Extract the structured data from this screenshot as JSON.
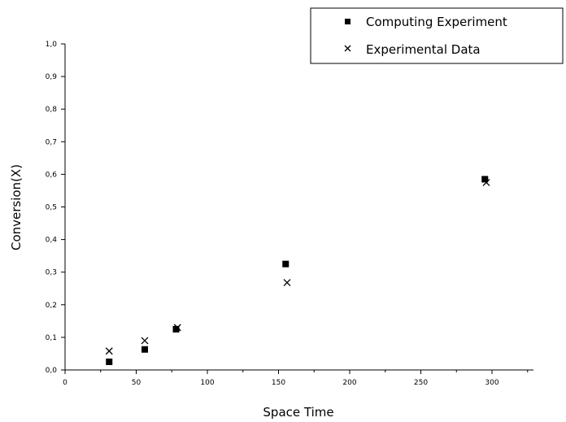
{
  "chart_data": {
    "type": "scatter",
    "xlabel": "Space Time",
    "ylabel": "Conversion(X)",
    "xlim": [
      0,
      325
    ],
    "ylim": [
      0,
      1.0
    ],
    "x_ticks": [
      "0",
      "50",
      "100",
      "150",
      "200",
      "250",
      "300"
    ],
    "y_ticks": [
      "0,0",
      "0,1",
      "0,2",
      "0,3",
      "0,4",
      "0,5",
      "0,6",
      "0,7",
      "0,8",
      "0,9",
      "1,0"
    ],
    "grid": false,
    "legend_position": "top-right",
    "series": [
      {
        "name": "Computing Experiment",
        "marker": "square",
        "color": "#000000",
        "points": [
          {
            "x": 31,
            "y": 0.025
          },
          {
            "x": 56,
            "y": 0.063
          },
          {
            "x": 78,
            "y": 0.125
          },
          {
            "x": 155,
            "y": 0.325
          },
          {
            "x": 295,
            "y": 0.585
          }
        ]
      },
      {
        "name": "Experimental Data",
        "marker": "cross",
        "color": "#000000",
        "points": [
          {
            "x": 31,
            "y": 0.058
          },
          {
            "x": 56,
            "y": 0.09
          },
          {
            "x": 79,
            "y": 0.13
          },
          {
            "x": 156,
            "y": 0.268
          },
          {
            "x": 296,
            "y": 0.575
          }
        ]
      }
    ]
  }
}
